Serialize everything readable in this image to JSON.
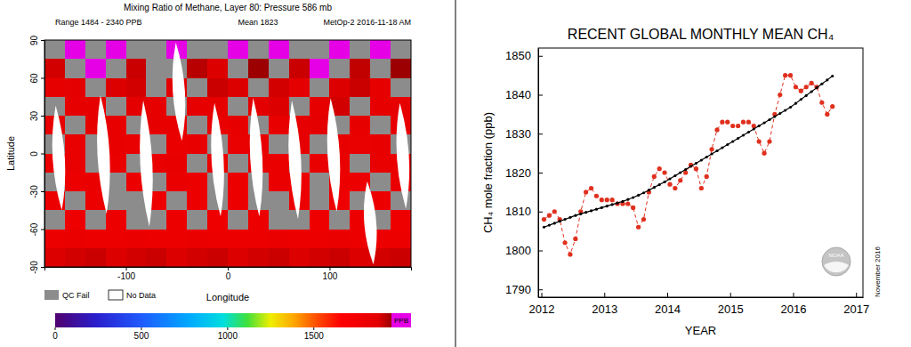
{
  "chart_data": [
    {
      "type": "heatmap",
      "title": "Mixing Ratio of Methane, Layer 80: Pressure 586 mb",
      "annotations": [
        "Range 1484 - 2340 PPB",
        "Mean 1823",
        "MetOp-2 2016-11-18 AM"
      ],
      "xlabel": "Longitude",
      "ylabel": "Latitude",
      "xlim": [
        -180,
        180
      ],
      "ylim": [
        -90,
        90
      ],
      "xticks": [
        -100,
        0,
        100
      ],
      "yticks": [
        -90,
        -60,
        -30,
        0,
        30,
        60,
        90
      ],
      "x": [
        -170,
        -150,
        -130,
        -110,
        -90,
        -70,
        -50,
        -30,
        -10,
        10,
        30,
        50,
        70,
        90,
        110,
        130,
        150,
        170
      ],
      "y": [
        82.5,
        67.5,
        52.5,
        37.5,
        22.5,
        7.5,
        -7.5,
        -22.5,
        -37.5,
        -52.5,
        -67.5,
        -82.5
      ],
      "cells": [
        [
          null,
          1960,
          null,
          1980,
          null,
          null,
          1970,
          null,
          null,
          1990,
          null,
          1960,
          null,
          null,
          1975,
          null,
          1965,
          null
        ],
        [
          1890,
          null,
          1960,
          null,
          1900,
          null,
          null,
          1920,
          1880,
          null,
          1950,
          null,
          1900,
          1970,
          null,
          1910,
          null,
          1950
        ],
        [
          1860,
          1870,
          null,
          1880,
          1890,
          null,
          1870,
          null,
          1900,
          1880,
          null,
          1890,
          1870,
          null,
          1880,
          1900,
          1860,
          null
        ],
        [
          null,
          1850,
          1860,
          null,
          1870,
          1850,
          null,
          1860,
          1850,
          null,
          1870,
          1880,
          null,
          1860,
          1890,
          null,
          1850,
          1860
        ],
        [
          1840,
          null,
          1850,
          1840,
          null,
          1850,
          1840,
          null,
          1830,
          1850,
          null,
          1840,
          1860,
          1870,
          null,
          1850,
          null,
          1840
        ],
        [
          null,
          1830,
          null,
          1840,
          1830,
          null,
          1820,
          1840,
          null,
          1830,
          1840,
          null,
          1850,
          null,
          1840,
          1830,
          1840,
          null
        ],
        [
          1820,
          1830,
          null,
          1820,
          null,
          1830,
          1840,
          null,
          1820,
          null,
          1830,
          1820,
          null,
          1830,
          1820,
          null,
          1830,
          1820
        ],
        [
          null,
          1810,
          1820,
          null,
          1810,
          null,
          1820,
          1800,
          null,
          1810,
          null,
          1820,
          1810,
          null,
          1800,
          1810,
          null,
          1820
        ],
        [
          1800,
          null,
          1810,
          null,
          null,
          1790,
          null,
          1810,
          null,
          1800,
          null,
          null,
          1810,
          null,
          1790,
          null,
          1800,
          null
        ],
        [
          null,
          1790,
          null,
          1800,
          null,
          null,
          1800,
          null,
          1790,
          null,
          1800,
          null,
          null,
          1790,
          null,
          1800,
          null,
          1790
        ],
        [
          1810,
          1820,
          1800,
          1810,
          1820,
          1810,
          1800,
          1820,
          1810,
          1800,
          1810,
          1820,
          1810,
          1800,
          1820,
          1810,
          1800,
          1810
        ],
        [
          1880,
          1890,
          1900,
          1880,
          1890,
          1900,
          1880,
          1890,
          1900,
          1880,
          1890,
          1900,
          1880,
          1890,
          1900,
          1880,
          1890,
          1900
        ]
      ],
      "no_data": [
        {
          "lon": -166,
          "lat": [
            -45,
            38
          ]
        },
        {
          "lon": -122,
          "lat": [
            -48,
            46
          ]
        },
        {
          "lon": -80,
          "lat": [
            -58,
            42
          ]
        },
        {
          "lon": -48,
          "lat": [
            10,
            88
          ]
        },
        {
          "lon": -10,
          "lat": [
            -50,
            40
          ]
        },
        {
          "lon": 28,
          "lat": [
            -50,
            44
          ]
        },
        {
          "lon": 66,
          "lat": [
            -52,
            42
          ]
        },
        {
          "lon": 104,
          "lat": [
            -46,
            44
          ]
        },
        {
          "lon": 140,
          "lat": [
            -88,
            -22
          ]
        },
        {
          "lon": 172,
          "lat": [
            -44,
            40
          ]
        }
      ],
      "qc_fail_label": "QC Fail",
      "no_data_label": "No Data",
      "colorbar": {
        "range": [
          0,
          1950
        ],
        "ticks": [
          0,
          500,
          1000,
          1500
        ],
        "label": "PPB"
      }
    },
    {
      "type": "line",
      "title": "RECENT GLOBAL MONTHLY MEAN CH₄",
      "xlabel": "YEAR",
      "ylabel": "CH₄ mole fraction (ppb)",
      "annotations": [
        "November 2016"
      ],
      "logo_text": "NOAA",
      "xlim": [
        2011.95,
        2017.11
      ],
      "ylim": [
        1788,
        1852
      ],
      "xticks": [
        2012,
        2013,
        2014,
        2015,
        2016,
        2017
      ],
      "yticks": [
        1790,
        1800,
        1810,
        1820,
        1830,
        1840,
        1850
      ],
      "x": [
        2012.042,
        2012.125,
        2012.208,
        2012.292,
        2012.375,
        2012.458,
        2012.542,
        2012.625,
        2012.708,
        2012.792,
        2012.875,
        2012.958,
        2013.042,
        2013.125,
        2013.208,
        2013.292,
        2013.375,
        2013.458,
        2013.542,
        2013.625,
        2013.708,
        2013.792,
        2013.875,
        2013.958,
        2014.042,
        2014.125,
        2014.208,
        2014.292,
        2014.375,
        2014.458,
        2014.542,
        2014.625,
        2014.708,
        2014.792,
        2014.875,
        2014.958,
        2015.042,
        2015.125,
        2015.208,
        2015.292,
        2015.375,
        2015.458,
        2015.542,
        2015.625,
        2015.708,
        2015.792,
        2015.875,
        2015.958,
        2016.042,
        2016.125,
        2016.208,
        2016.292,
        2016.375,
        2016.458,
        2016.542,
        2016.625
      ],
      "series": [
        {
          "color": "#e0301e",
          "marker": "circle",
          "line_style": "dashed",
          "values": [
            1808,
            1809,
            1810,
            1808,
            1802,
            1799,
            1803,
            1810,
            1815,
            1816,
            1814,
            1813,
            1813,
            1813,
            1812,
            1812,
            1812,
            1811,
            1806,
            1808,
            1815,
            1819,
            1821,
            1820,
            1817,
            1816,
            1818,
            1820,
            1822,
            1821,
            1816,
            1819,
            1826,
            1831,
            1833,
            1833,
            1832,
            1832,
            1833,
            1833,
            1832,
            1828,
            1825,
            1828,
            1835,
            1840,
            1845,
            1845,
            1842,
            1841,
            1842,
            1843,
            1842,
            1838,
            1835,
            1837
          ]
        },
        {
          "color": "#000000",
          "marker": "dot",
          "line_style": "solid",
          "values": [
            1806.0,
            1806.5,
            1807.0,
            1807.5,
            1808.0,
            1808.5,
            1809.0,
            1809.4,
            1809.8,
            1810.2,
            1810.6,
            1811.0,
            1811.4,
            1811.8,
            1812.2,
            1812.6,
            1813.1,
            1813.6,
            1814.2,
            1814.8,
            1815.5,
            1816.2,
            1816.9,
            1817.6,
            1818.4,
            1819.2,
            1820.0,
            1820.8,
            1821.6,
            1822.4,
            1823.2,
            1824.0,
            1824.8,
            1825.6,
            1826.4,
            1827.2,
            1828.0,
            1828.8,
            1829.6,
            1830.4,
            1831.2,
            1832.0,
            1832.8,
            1833.6,
            1834.4,
            1835.2,
            1836.0,
            1836.8,
            1837.8,
            1838.8,
            1839.8,
            1840.8,
            1841.8,
            1842.8,
            1843.8,
            1844.8
          ]
        }
      ]
    }
  ]
}
